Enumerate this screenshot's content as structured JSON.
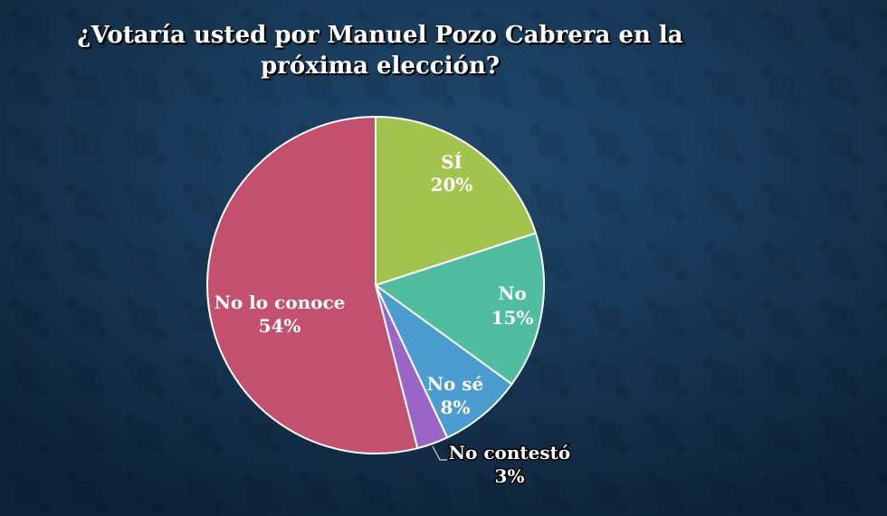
{
  "title": {
    "line1": "¿Votaría usted por Manuel Pozo Cabrera en la",
    "line2": "próxima elección?"
  },
  "chart_data": {
    "type": "pie",
    "title": "¿Votaría usted por Manuel Pozo Cabrera en la próxima elección?",
    "categories": [
      "SÍ",
      "No",
      "No sé",
      "No contestó",
      "No lo conoce"
    ],
    "values": [
      20,
      15,
      8,
      3,
      54
    ],
    "unit": "%",
    "colors": [
      "#a2c44e",
      "#50bca0",
      "#4b9ccf",
      "#9b65c8",
      "#c4506f"
    ],
    "start_angle": "12 o'clock",
    "direction": "clockwise",
    "labels": [
      {
        "name": "SÍ",
        "pct": "20%"
      },
      {
        "name": "No",
        "pct": "15%"
      },
      {
        "name": "No sé",
        "pct": "8%"
      },
      {
        "name": "No contestó",
        "pct": "3%"
      },
      {
        "name": "No lo conoce",
        "pct": "54%"
      }
    ],
    "legend": "none (data labels on slices)"
  },
  "colors": {
    "background_light": "#1f476c",
    "background_dark": "#0e2236",
    "slice_border": "#ffffff",
    "text": "#ffffff"
  }
}
